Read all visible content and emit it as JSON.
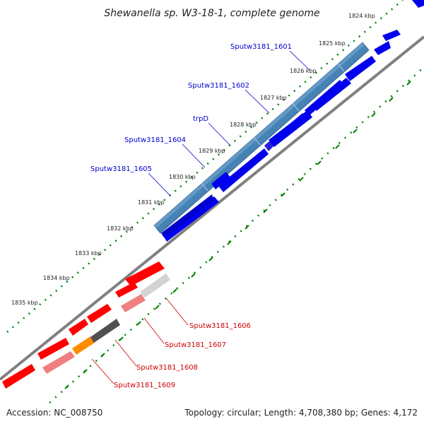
{
  "title": "Shewanella sp. W3-18-1, complete genome",
  "footer": {
    "accession": "Accession: NC_008750",
    "topology": "Topology: circular; Length: 4,708,380 bp; Genes: 4,172"
  },
  "ticks": [
    "1824 kbp",
    "1825 kbp",
    "1826 kbp",
    "1827 kbp",
    "1828 kbp",
    "1829 kbp",
    "1830 kbp",
    "1831 kbp",
    "1832 kbp",
    "1833 kbp",
    "1834 kbp",
    "1835 kbp"
  ],
  "top_labels": [
    "Sputw3181_1601",
    "Sputw3181_1602",
    "trpD",
    "Sputw3181_1604",
    "Sputw3181_1605"
  ],
  "bottom_labels": [
    "Sputw3181_1606",
    "Sputw3181_1607",
    "Sputw3181_1608",
    "Sputw3181_1609"
  ],
  "colors": {
    "forward_cds": "#0000ee",
    "highlight_top": "#4682b4",
    "reverse_cds": "#ff0000",
    "highlight_pink": "#f08080",
    "highlight_grey": "#d3d3d3",
    "highlight_dark": "#505050",
    "highlight_orange": "#ff8c00",
    "backbone": "#808080",
    "tick_marks": "#008000"
  }
}
